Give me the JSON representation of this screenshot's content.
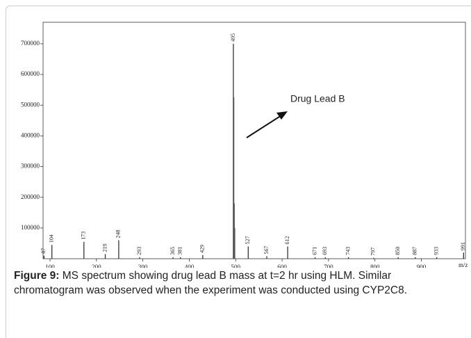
{
  "chart_data": {
    "type": "stick",
    "annotation": "Drug Lead B",
    "xlabel": "m/z",
    "xlim": [
      85,
      995
    ],
    "xticks": [
      100,
      200,
      300,
      400,
      500,
      600,
      700,
      800,
      900
    ],
    "ylim": [
      0,
      770000
    ],
    "yticks": [
      100000,
      200000,
      300000,
      400000,
      500000,
      600000,
      700000
    ],
    "series": [
      {
        "color": "#333333",
        "show_labels": true,
        "x": [
          87,
          104,
          173,
          219,
          248,
          293,
          365,
          381,
          429,
          495,
          527,
          567,
          612,
          671,
          693,
          743,
          797,
          850,
          887,
          933,
          991
        ],
        "values": [
          10000,
          45000,
          55000,
          15000,
          60000,
          5000,
          5000,
          5000,
          12000,
          700000,
          40000,
          8000,
          40000,
          5000,
          5000,
          5000,
          3000,
          5000,
          5000,
          5000,
          20000
        ]
      },
      {
        "color": "#555555",
        "show_labels": false,
        "x": [
          496,
          497,
          498
        ],
        "values": [
          525000,
          180000,
          100000
        ]
      }
    ]
  },
  "caption": {
    "label": "Figure 9:",
    "text": "MS spectrum showing drug lead B mass at t=2 hr using HLM. Similar chromatogram was observed when the experiment was conducted using CYP2C8."
  }
}
